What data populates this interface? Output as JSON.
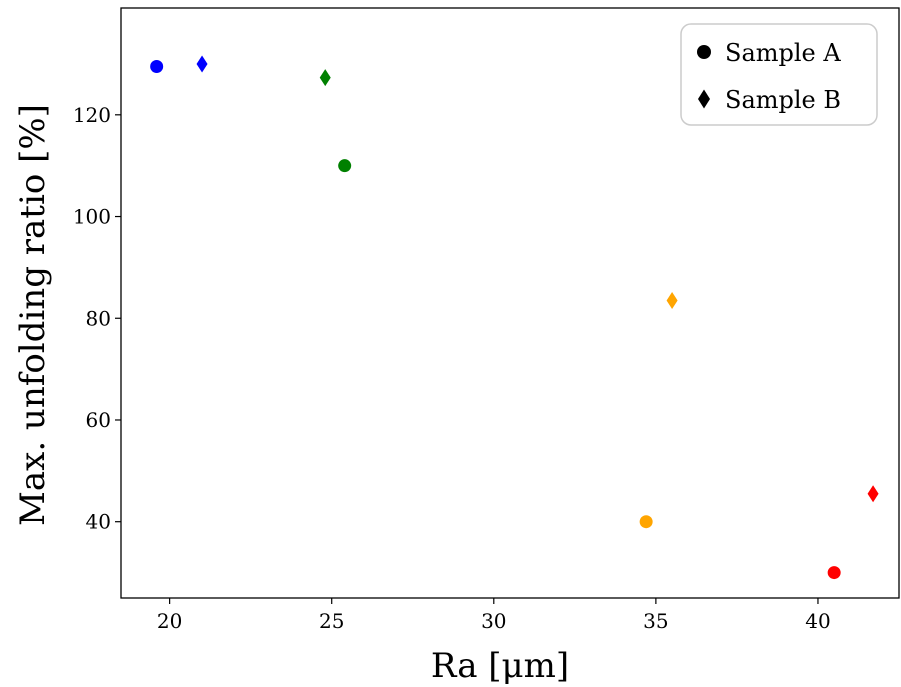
{
  "chart_data": {
    "type": "scatter",
    "xlabel": "Ra [μm]",
    "ylabel": "Max. unfolding ratio [%]",
    "xlim": [
      18.5,
      42.5
    ],
    "ylim": [
      25,
      141
    ],
    "xticks": [
      20,
      25,
      30,
      35,
      40
    ],
    "yticks": [
      40,
      60,
      80,
      100,
      120
    ],
    "xtick_labels": [
      "20",
      "25",
      "30",
      "35",
      "40"
    ],
    "ytick_labels": [
      "40",
      "60",
      "80",
      "100",
      "120"
    ],
    "grid": false,
    "legend_placement": "top-right",
    "series": [
      {
        "name": "Sample A",
        "marker": "circle",
        "points": [
          {
            "x": 19.6,
            "y": 129.5,
            "color": "#0000ff"
          },
          {
            "x": 25.4,
            "y": 110.0,
            "color": "#008000"
          },
          {
            "x": 34.7,
            "y": 40.0,
            "color": "#ffa500"
          },
          {
            "x": 40.5,
            "y": 30.0,
            "color": "#ff0000"
          }
        ]
      },
      {
        "name": "Sample B",
        "marker": "diamond",
        "points": [
          {
            "x": 21.0,
            "y": 130.0,
            "color": "#0000ff"
          },
          {
            "x": 24.8,
            "y": 127.3,
            "color": "#008000"
          },
          {
            "x": 35.5,
            "y": 83.5,
            "color": "#ffa500"
          },
          {
            "x": 41.7,
            "y": 45.5,
            "color": "#ff0000"
          }
        ]
      }
    ]
  }
}
